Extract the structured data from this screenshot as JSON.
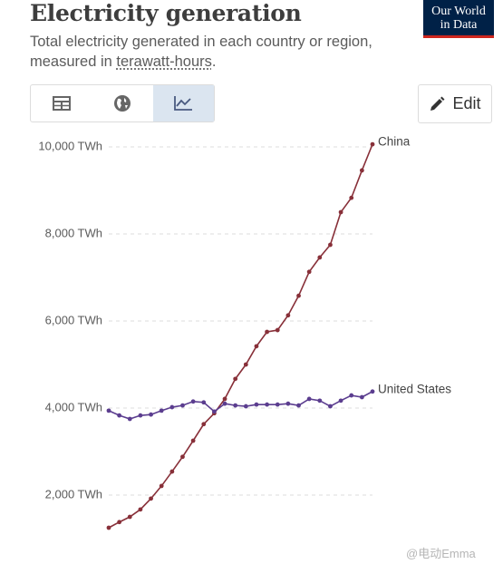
{
  "header": {
    "title": "Electricity generation",
    "subtitle": [
      "Total electricity generated in each country or region, measured in",
      "terawatt-hours",
      "."
    ],
    "logo": [
      "Our World",
      "in Data"
    ],
    "edit_button": "Edit"
  },
  "watermark": "@电动Emma",
  "chart_data": {
    "type": "line",
    "categories": [
      null,
      null,
      null,
      null,
      null,
      null,
      null,
      null,
      null,
      null,
      null,
      null,
      null,
      null,
      null,
      null,
      null,
      null,
      null,
      null,
      null,
      null,
      null,
      null,
      null,
      null
    ],
    "series": [
      {
        "name": "China",
        "color": "#883039",
        "values": [
          1250,
          1380,
          1500,
          1670,
          1920,
          2210,
          2540,
          2880,
          3250,
          3630,
          3880,
          4210,
          4670,
          5000,
          5420,
          5750,
          5790,
          6130,
          6580,
          7130,
          7460,
          7750,
          8500,
          8830,
          9460,
          10060
        ]
      },
      {
        "name": "United States",
        "color": "#5b3d8f",
        "values": [
          3940,
          3830,
          3750,
          3830,
          3850,
          3940,
          4020,
          4060,
          4150,
          4130,
          3920,
          4100,
          4060,
          4040,
          4080,
          4080,
          4080,
          4100,
          4060,
          4210,
          4170,
          4040,
          4170,
          4290,
          4250,
          4380
        ]
      }
    ],
    "ylim": [
      900,
      10250
    ],
    "yticks": [
      {
        "value": 2000,
        "label": "2,000 TWh"
      },
      {
        "value": 4000,
        "label": "4,000 TWh"
      },
      {
        "value": 6000,
        "label": "6,000 TWh"
      },
      {
        "value": 8000,
        "label": "8,000 TWh"
      },
      {
        "value": 10000,
        "label": "10,000 TWh"
      }
    ],
    "grid": true
  }
}
